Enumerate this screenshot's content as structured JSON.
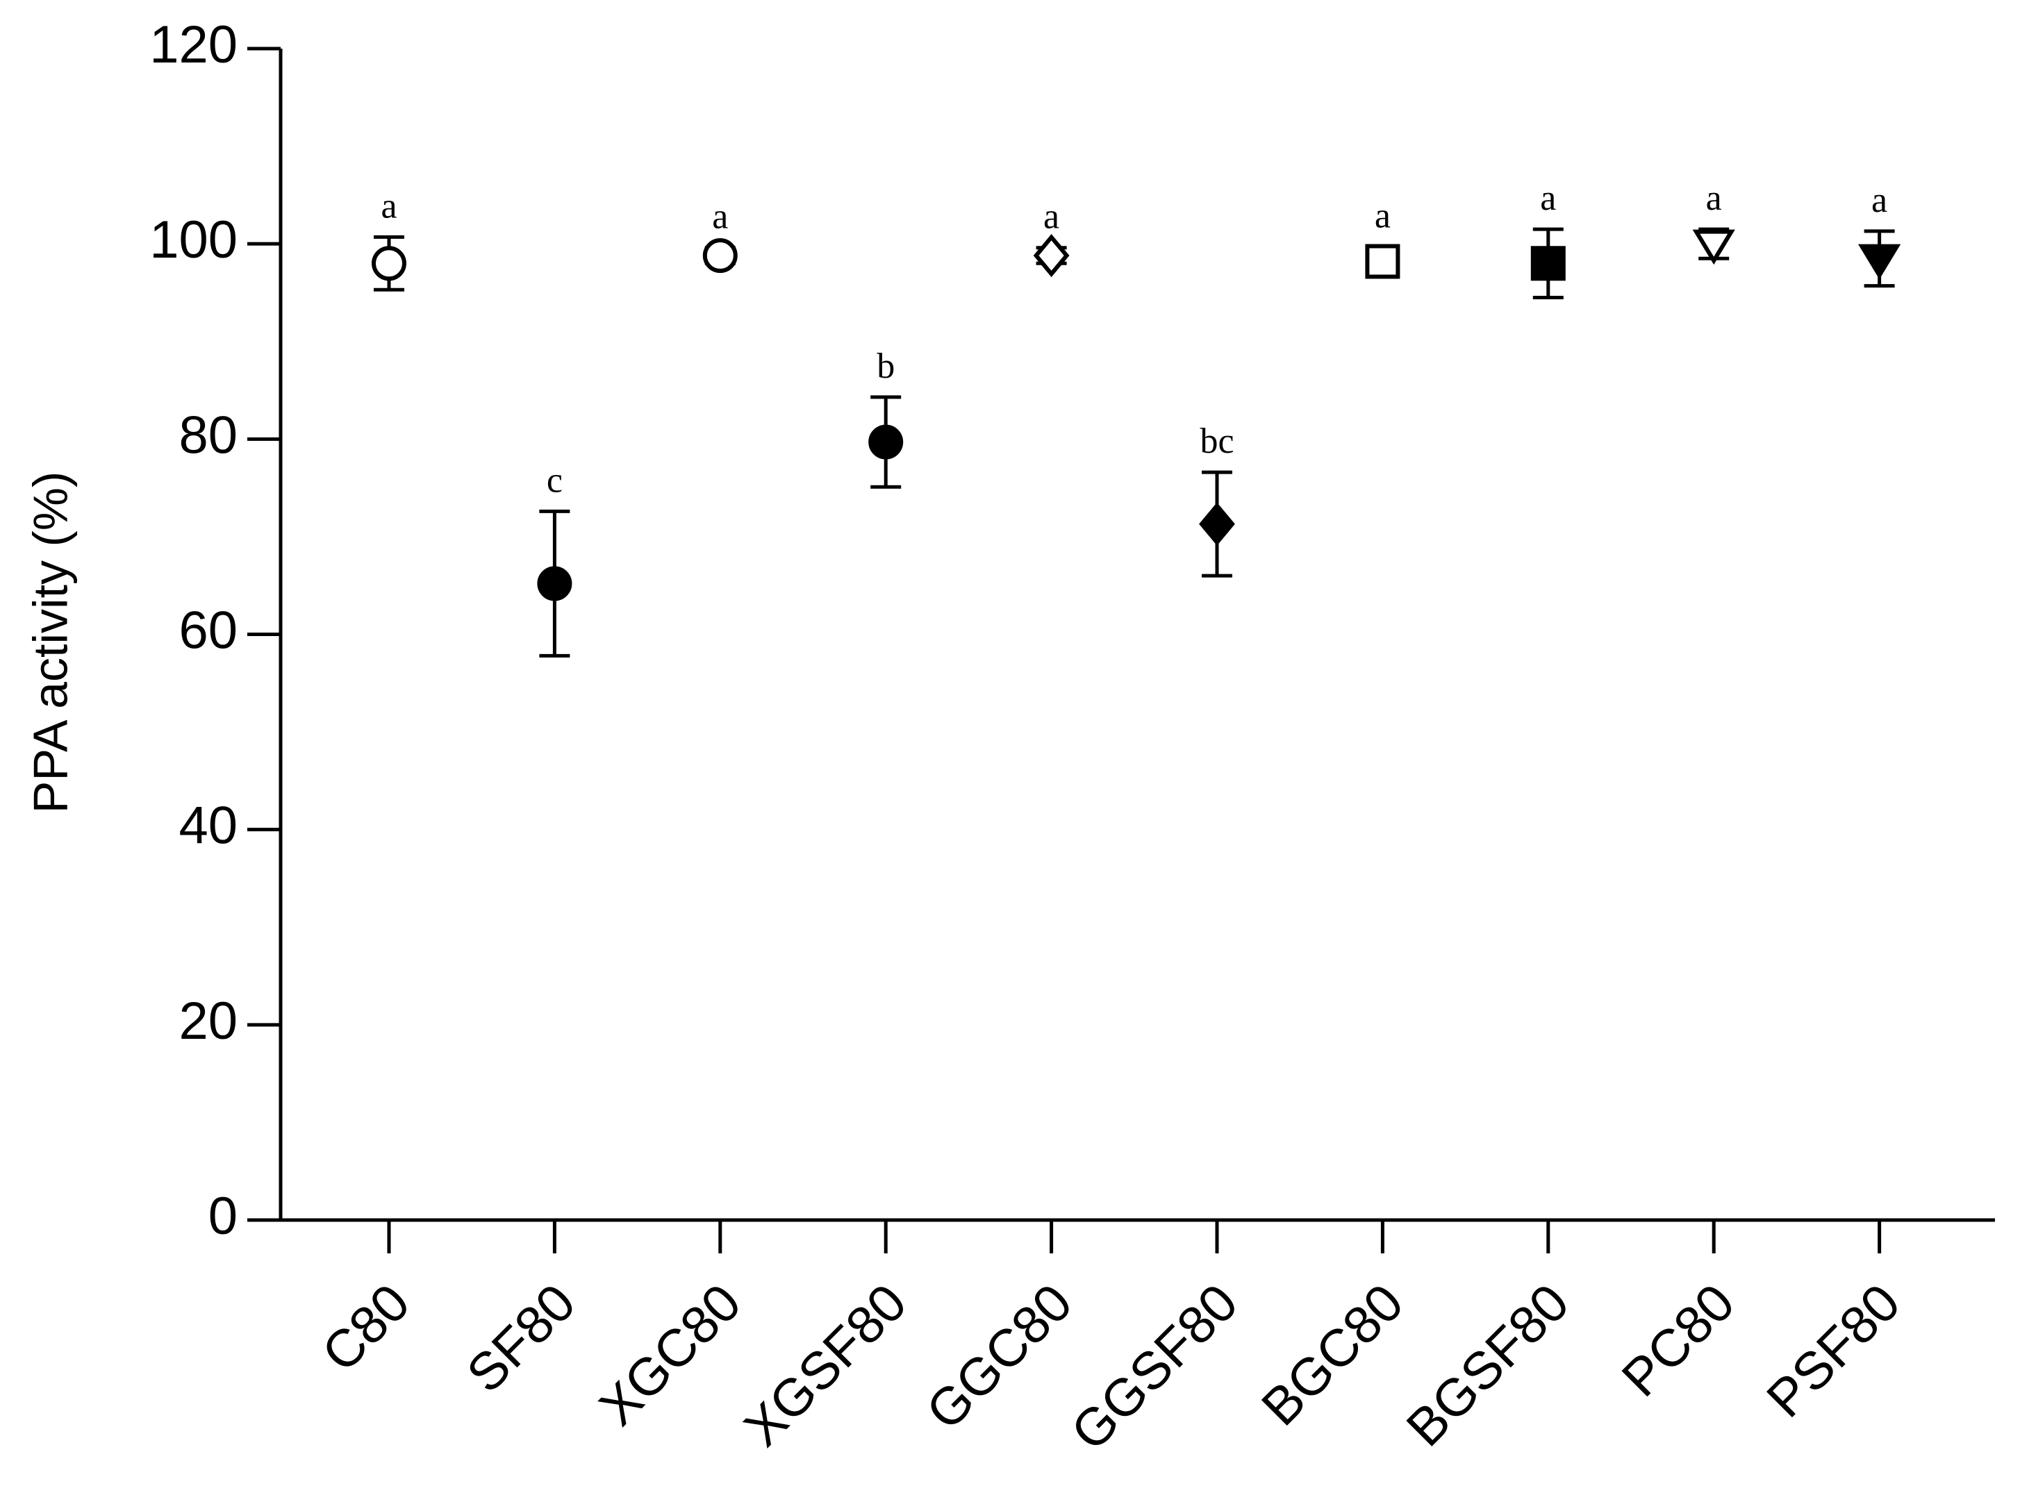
{
  "chart_data": {
    "type": "scatter",
    "y_label": "PPA activity (%)",
    "categories": [
      "C80",
      "SF80",
      "XGC80",
      "XGSF80",
      "GGC80",
      "GGSF80",
      "BGC80",
      "BGSF80",
      "PC80",
      "PSF80"
    ],
    "values": [
      98,
      65.2,
      98.8,
      79.7,
      98.8,
      71.3,
      98.2,
      98,
      100,
      98.5
    ],
    "errors": [
      2.7,
      7.4,
      0.8,
      4.6,
      0.8,
      5.3,
      1.5,
      3.5,
      1.5,
      2.8
    ],
    "annotations": [
      "a",
      "c",
      "a",
      "b",
      "a",
      "bc",
      "a",
      "a",
      "a",
      "a"
    ],
    "markers": [
      "circle-open",
      "circle",
      "circle-open",
      "circle",
      "diamond-open",
      "diamond",
      "square-open",
      "square",
      "triangle-down-open",
      "triangle-down"
    ],
    "color": "#000000",
    "ylim": [
      0,
      120
    ],
    "yticks": [
      0,
      20,
      40,
      60,
      80,
      100,
      120
    ]
  }
}
